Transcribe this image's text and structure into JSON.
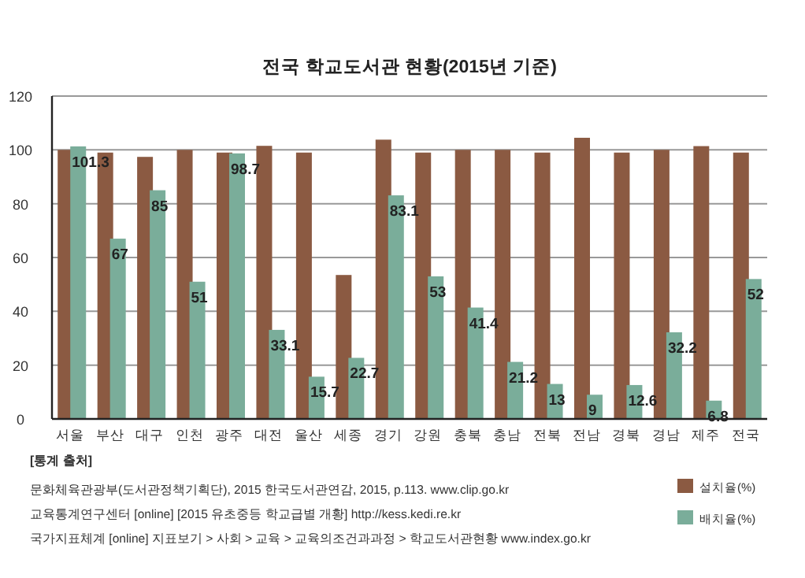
{
  "chart_data": {
    "type": "bar",
    "title": "전국 학교도서관 현황(2015년 기준)",
    "categories": [
      "서울",
      "부산",
      "대구",
      "인천",
      "광주",
      "대전",
      "울산",
      "세종",
      "경기",
      "강원",
      "충북",
      "충남",
      "전북",
      "전남",
      "경북",
      "경남",
      "제주",
      "전국"
    ],
    "series": [
      {
        "name": "설치율(%)",
        "color": "#8b5a42",
        "values": [
          100,
          99,
          97.4,
          100,
          99,
          101.5,
          99,
          53.5,
          103.8,
          99,
          100,
          100,
          99,
          104.5,
          99,
          100,
          101.4,
          99
        ]
      },
      {
        "name": "배치율(%)",
        "color": "#7aad9a",
        "values": [
          101.3,
          67,
          85,
          51,
          98.7,
          33.1,
          15.7,
          22.7,
          83.1,
          53,
          41.4,
          21.2,
          13,
          9,
          12.6,
          32.2,
          6.8,
          52
        ],
        "value_labels": [
          "101.3",
          "67",
          "85",
          "51",
          "98.7",
          "33.1",
          "15.7",
          "22.7",
          "83.1",
          "53",
          "41.4",
          "21.2",
          "13",
          "9",
          "12.6",
          "32.2",
          "6.8",
          "52"
        ]
      }
    ],
    "ylim": [
      0,
      120
    ],
    "yticks": [
      0,
      20,
      40,
      60,
      80,
      100,
      120
    ],
    "grid": "y",
    "legend": "bottom right",
    "annotations": [
      "[통계 출처]",
      "문화체육관광부(도서관정책기획단), 2015 한국도서관연감, 2015, p.113.  www.clip.go.kr",
      "교육통계연구센터 [online] [2015 유초중등 학교급별 개황]  http://kess.kedi.re.kr",
      "국가지표체계 [online] 지표보기 > 사회 > 교육 > 교육의조건과과정 > 학교도서관현황  www.index.go.kr"
    ]
  }
}
